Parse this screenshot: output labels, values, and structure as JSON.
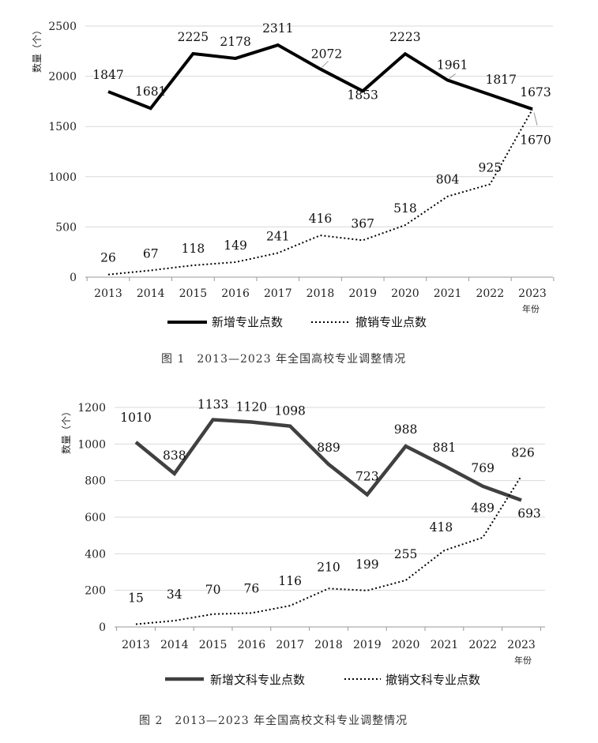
{
  "chart_data": [
    {
      "type": "line",
      "caption": "图 1　2013—2023 年全国高校专业调整情况",
      "ylabel": "数量（个）",
      "xunit": "年份",
      "categories": [
        "2013",
        "2014",
        "2015",
        "2016",
        "2017",
        "2018",
        "2019",
        "2020",
        "2021",
        "2022",
        "2023"
      ],
      "ylim": [
        0,
        2500
      ],
      "yticks": [
        0,
        500,
        1000,
        1500,
        2000,
        2500
      ],
      "grid": true,
      "legend_position": "bottom",
      "series": [
        {
          "name": "新增专业点数",
          "style": "solid",
          "color": "#000000",
          "values": [
            1847,
            1681,
            2225,
            2178,
            2311,
            2072,
            1853,
            2223,
            1961,
            1817,
            1673
          ]
        },
        {
          "name": "撤销专业点数",
          "style": "dotted",
          "color": "#000000",
          "values": [
            26,
            67,
            118,
            149,
            241,
            416,
            367,
            518,
            804,
            925,
            1670
          ]
        }
      ]
    },
    {
      "type": "line",
      "caption": "图 2　2013—2023 年全国高校文科专业调整情况",
      "ylabel": "数量（个）",
      "xunit": "年份",
      "categories": [
        "2013",
        "2014",
        "2015",
        "2016",
        "2017",
        "2018",
        "2019",
        "2020",
        "2021",
        "2022",
        "2023"
      ],
      "ylim": [
        0,
        1200
      ],
      "yticks": [
        0,
        200,
        400,
        600,
        800,
        1000,
        1200
      ],
      "grid": true,
      "legend_position": "bottom",
      "series": [
        {
          "name": "新增文科专业点数",
          "style": "solid",
          "color": "#404040",
          "values": [
            1010,
            838,
            1133,
            1120,
            1098,
            889,
            723,
            988,
            881,
            769,
            693
          ]
        },
        {
          "name": "撤销文科专业点数",
          "style": "dotted",
          "color": "#000000",
          "values": [
            15,
            34,
            70,
            76,
            116,
            210,
            199,
            255,
            418,
            489,
            826
          ]
        }
      ]
    }
  ]
}
